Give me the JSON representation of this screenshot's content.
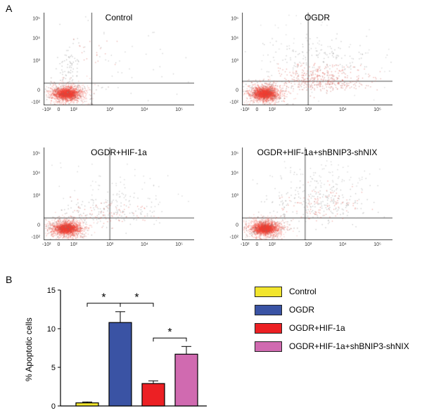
{
  "figure": {
    "panel_a_label": "A",
    "panel_b_label": "B"
  },
  "chart_data": [
    {
      "type": "scatter",
      "subtype": "flow-cytometry-apoptosis",
      "x_ticks": [
        {
          "label": "-10²",
          "f": 0.02
        },
        {
          "label": "0",
          "f": 0.1
        },
        {
          "label": "10²",
          "f": 0.2
        },
        {
          "label": "10³",
          "f": 0.44
        },
        {
          "label": "10⁴",
          "f": 0.67
        },
        {
          "label": "10⁵",
          "f": 0.9
        }
      ],
      "y_ticks": [
        {
          "label": "10⁵",
          "f": 0.93
        },
        {
          "label": "10⁴",
          "f": 0.72
        },
        {
          "label": "10³",
          "f": 0.48
        },
        {
          "label": "0",
          "f": 0.16
        },
        {
          "label": "-10²",
          "f": 0.03
        }
      ],
      "plots": [
        {
          "title": "Control",
          "seed": 11,
          "gate_x": 0.32,
          "gate_y": 0.24,
          "clusters": [
            {
              "cx": 0.15,
              "cy": 0.13,
              "sx": 0.065,
              "sy": 0.055,
              "n": 700,
              "color": "#f0685c",
              "alpha": 0.35
            },
            {
              "cx": 0.15,
              "cy": 0.13,
              "sx": 0.045,
              "sy": 0.035,
              "n": 900,
              "color": "#ef5347",
              "alpha": 0.5
            },
            {
              "cx": 0.15,
              "cy": 0.13,
              "sx": 0.025,
              "sy": 0.02,
              "n": 600,
              "color": "#ee4034",
              "alpha": 0.55
            },
            {
              "cx": 0.15,
              "cy": 0.14,
              "sx": 0.09,
              "sy": 0.08,
              "n": 120,
              "color": "#8a6b67",
              "alpha": 0.5
            },
            {
              "cx": 0.16,
              "cy": 0.42,
              "sx": 0.04,
              "sy": 0.12,
              "n": 70,
              "color": "#9a9a9a",
              "alpha": 0.6
            },
            {
              "cx": 0.5,
              "cy": 0.45,
              "sx": 0.28,
              "sy": 0.22,
              "n": 50,
              "color": "#9a9a9a",
              "alpha": 0.5
            },
            {
              "cx": 0.3,
              "cy": 0.6,
              "sx": 0.1,
              "sy": 0.08,
              "n": 20,
              "color": "#d96a60",
              "alpha": 0.55
            }
          ]
        },
        {
          "title": "OGDR",
          "seed": 22,
          "gate_x": 0.44,
          "gate_y": 0.26,
          "clusters": [
            {
              "cx": 0.15,
              "cy": 0.13,
              "sx": 0.065,
              "sy": 0.055,
              "n": 700,
              "color": "#f0685c",
              "alpha": 0.35
            },
            {
              "cx": 0.15,
              "cy": 0.13,
              "sx": 0.045,
              "sy": 0.035,
              "n": 900,
              "color": "#ef5347",
              "alpha": 0.5
            },
            {
              "cx": 0.15,
              "cy": 0.13,
              "sx": 0.025,
              "sy": 0.02,
              "n": 600,
              "color": "#ee4034",
              "alpha": 0.55
            },
            {
              "cx": 0.15,
              "cy": 0.14,
              "sx": 0.09,
              "sy": 0.08,
              "n": 120,
              "color": "#8a6b67",
              "alpha": 0.5
            },
            {
              "cx": 0.5,
              "cy": 0.26,
              "sx": 0.17,
              "sy": 0.06,
              "n": 260,
              "color": "#c96058",
              "alpha": 0.5
            },
            {
              "cx": 0.55,
              "cy": 0.33,
              "sx": 0.16,
              "sy": 0.07,
              "n": 160,
              "color": "#e2574d",
              "alpha": 0.5
            },
            {
              "cx": 0.52,
              "cy": 0.52,
              "sx": 0.2,
              "sy": 0.13,
              "n": 150,
              "color": "#969696",
              "alpha": 0.55
            },
            {
              "cx": 0.45,
              "cy": 0.4,
              "sx": 0.3,
              "sy": 0.28,
              "n": 90,
              "color": "#9a9a9a",
              "alpha": 0.4
            }
          ]
        },
        {
          "title": "OGDR+HIF-1a",
          "seed": 33,
          "gate_x": 0.44,
          "gate_y": 0.24,
          "clusters": [
            {
              "cx": 0.15,
              "cy": 0.13,
              "sx": 0.065,
              "sy": 0.055,
              "n": 700,
              "color": "#f0685c",
              "alpha": 0.35
            },
            {
              "cx": 0.15,
              "cy": 0.13,
              "sx": 0.045,
              "sy": 0.035,
              "n": 900,
              "color": "#ef5347",
              "alpha": 0.5
            },
            {
              "cx": 0.15,
              "cy": 0.13,
              "sx": 0.025,
              "sy": 0.02,
              "n": 600,
              "color": "#ee4034",
              "alpha": 0.55
            },
            {
              "cx": 0.15,
              "cy": 0.14,
              "sx": 0.09,
              "sy": 0.08,
              "n": 120,
              "color": "#8a6b67",
              "alpha": 0.5
            },
            {
              "cx": 0.44,
              "cy": 0.33,
              "sx": 0.16,
              "sy": 0.09,
              "n": 150,
              "color": "#979797",
              "alpha": 0.55
            },
            {
              "cx": 0.46,
              "cy": 0.31,
              "sx": 0.12,
              "sy": 0.06,
              "n": 70,
              "color": "#e2574d",
              "alpha": 0.5
            },
            {
              "cx": 0.5,
              "cy": 0.58,
              "sx": 0.22,
              "sy": 0.14,
              "n": 60,
              "color": "#9a9a9a",
              "alpha": 0.45
            }
          ]
        },
        {
          "title": "OGDR+HIF-1a+shBNIP3-shNIX",
          "seed": 44,
          "gate_x": 0.42,
          "gate_y": 0.24,
          "clusters": [
            {
              "cx": 0.15,
              "cy": 0.13,
              "sx": 0.065,
              "sy": 0.055,
              "n": 700,
              "color": "#f0685c",
              "alpha": 0.35
            },
            {
              "cx": 0.15,
              "cy": 0.13,
              "sx": 0.045,
              "sy": 0.035,
              "n": 900,
              "color": "#ef5347",
              "alpha": 0.5
            },
            {
              "cx": 0.15,
              "cy": 0.13,
              "sx": 0.025,
              "sy": 0.02,
              "n": 600,
              "color": "#ee4034",
              "alpha": 0.55
            },
            {
              "cx": 0.15,
              "cy": 0.14,
              "sx": 0.09,
              "sy": 0.08,
              "n": 120,
              "color": "#8a6b67",
              "alpha": 0.5
            },
            {
              "cx": 0.5,
              "cy": 0.42,
              "sx": 0.18,
              "sy": 0.14,
              "n": 220,
              "color": "#969696",
              "alpha": 0.55
            },
            {
              "cx": 0.52,
              "cy": 0.4,
              "sx": 0.14,
              "sy": 0.1,
              "n": 100,
              "color": "#e2574d",
              "alpha": 0.5
            },
            {
              "cx": 0.55,
              "cy": 0.68,
              "sx": 0.2,
              "sy": 0.1,
              "n": 70,
              "color": "#9a9a9a",
              "alpha": 0.45
            }
          ]
        }
      ]
    },
    {
      "type": "bar",
      "ylabel": "% Apoptotic cells",
      "ylim": [
        0,
        15
      ],
      "yticks": [
        0,
        5,
        10,
        15
      ],
      "categories": [
        "Control",
        "OGDR",
        "OGDR+HIF-1a",
        "OGDR+HIF-1a+shBNIP3-shNIX"
      ],
      "values": [
        0.4,
        10.8,
        2.9,
        6.7
      ],
      "errors": [
        0.12,
        1.4,
        0.35,
        1.0
      ],
      "colors": [
        "#f2e52e",
        "#3a53a4",
        "#ec2024",
        "#d06ab0"
      ],
      "bar_edge_color": "#000000",
      "significance": [
        {
          "between": [
            0,
            1
          ],
          "y": 13.3,
          "label": "*"
        },
        {
          "between": [
            1,
            2
          ],
          "y": 13.3,
          "label": "*"
        },
        {
          "between": [
            2,
            3
          ],
          "y": 8.8,
          "label": "*"
        }
      ],
      "legend_position": "right"
    }
  ]
}
